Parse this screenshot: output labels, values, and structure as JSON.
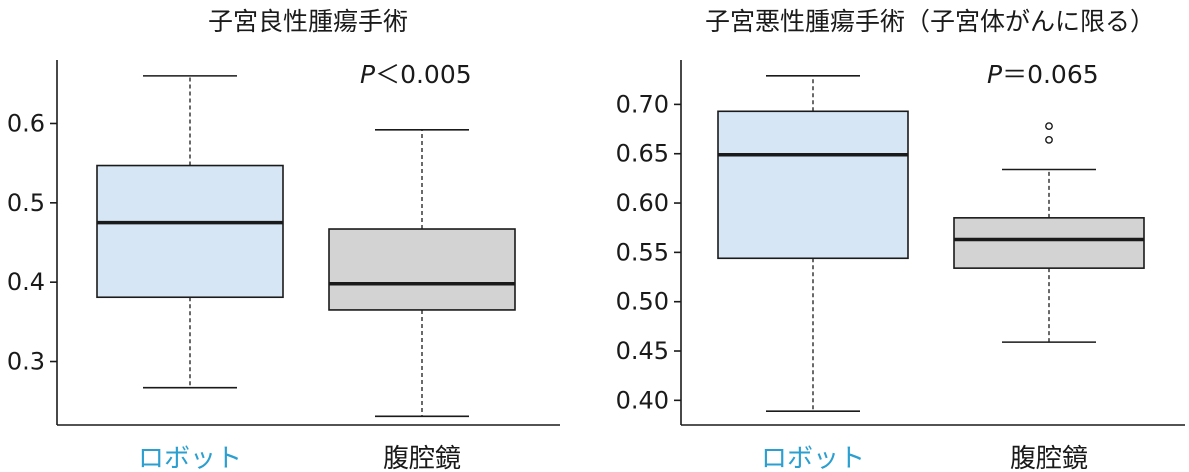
{
  "chart_data": [
    {
      "type": "box",
      "title": "子宮良性腫瘍手術",
      "ylim": [
        0.22,
        0.68
      ],
      "yticks": [
        0.3,
        0.4,
        0.5,
        0.6
      ],
      "ytick_labels": [
        "0.3",
        "0.4",
        "0.5",
        "0.6"
      ],
      "categories": [
        "ロボット",
        "腹腔鏡"
      ],
      "category_colors": [
        "#2a9fd0",
        "#1a1a1a"
      ],
      "boxes": [
        {
          "category": "ロボット",
          "whisker_low": 0.267,
          "q1": 0.381,
          "median": 0.475,
          "q3": 0.547,
          "whisker_high": 0.66,
          "outliers": [],
          "fill": "#d6e6f4"
        },
        {
          "category": "腹腔鏡",
          "whisker_low": 0.231,
          "q1": 0.365,
          "median": 0.398,
          "q3": 0.467,
          "whisker_high": 0.592,
          "outliers": [],
          "fill": "#d3d3d3"
        }
      ],
      "annotation": {
        "italic": "P",
        "rest": "＜0.005"
      }
    },
    {
      "type": "box",
      "title": "子宮悪性腫瘍手術（子宮体がんに限る）",
      "ylim": [
        0.375,
        0.745
      ],
      "yticks": [
        0.4,
        0.45,
        0.5,
        0.55,
        0.6,
        0.65,
        0.7
      ],
      "ytick_labels": [
        "0.40",
        "0.45",
        "0.50",
        "0.55",
        "0.60",
        "0.65",
        "0.70"
      ],
      "categories": [
        "ロボット",
        "腹腔鏡"
      ],
      "category_colors": [
        "#2a9fd0",
        "#1a1a1a"
      ],
      "boxes": [
        {
          "category": "ロボット",
          "whisker_low": 0.389,
          "q1": 0.544,
          "median": 0.649,
          "q3": 0.693,
          "whisker_high": 0.729,
          "outliers": [],
          "fill": "#d6e6f4"
        },
        {
          "category": "腹腔鏡",
          "whisker_low": 0.459,
          "q1": 0.534,
          "median": 0.563,
          "q3": 0.585,
          "whisker_high": 0.634,
          "outliers": [
            0.664,
            0.678
          ],
          "fill": "#d3d3d3"
        }
      ],
      "annotation": {
        "italic": "P",
        "rest": "＝0.065"
      }
    }
  ]
}
